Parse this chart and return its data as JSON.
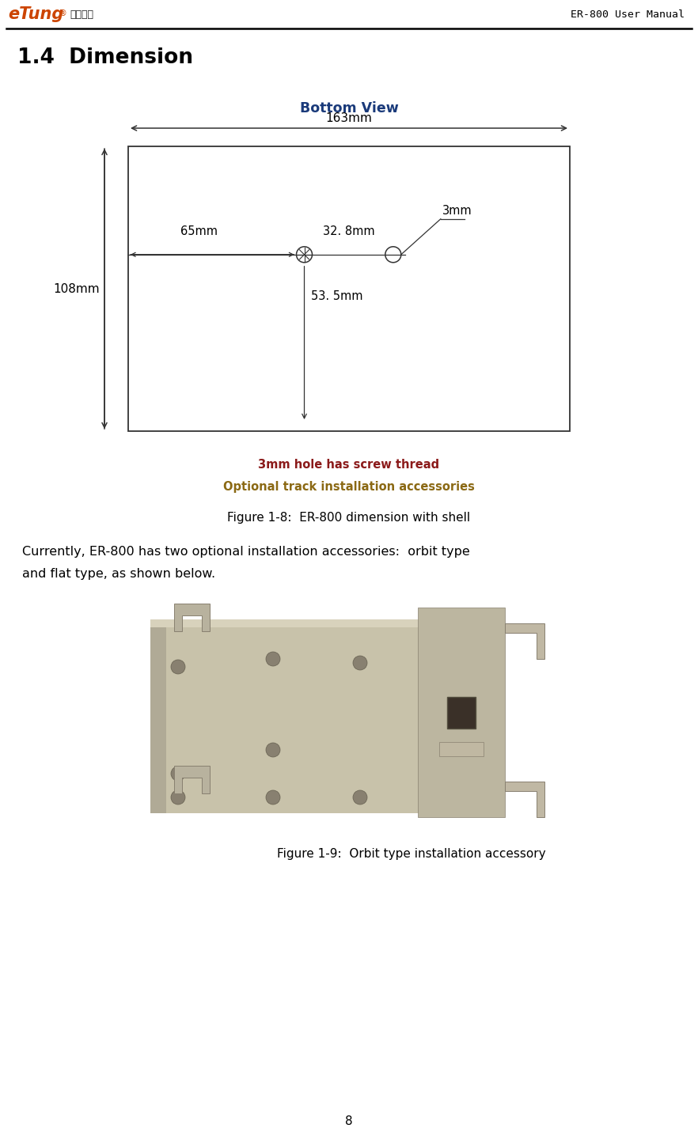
{
  "page_title": "1.4  Dimension",
  "header_right": "ER-800 User Manual",
  "bottom_view_label": "Bottom View",
  "dim_163": "163mm",
  "dim_108": "108mm",
  "dim_65": "65mm",
  "dim_32_8": "32. 8mm",
  "dim_3": "3mm",
  "dim_53_5": "53. 5mm",
  "note1": "3mm hole has screw thread",
  "note2": "Optional track installation accessories",
  "fig1_caption": "Figure 1-8:  ER-800 dimension with shell",
  "body_text1": "Currently, ER-800 has two optional installation accessories:  orbit type",
  "body_text2": "and flat type, as shown below.",
  "fig2_caption": "Figure 1-9:  Orbit type installation accessory",
  "page_number": "8",
  "bg_color": "#ffffff",
  "text_color": "#000000",
  "note1_color": "#8B1A1A",
  "note2_color": "#8B6914",
  "diagram_line_color": "#333333",
  "bottom_view_color": "#1a3a7a",
  "photo_bg": "#c8c4b0",
  "photo_dark": "#5a5040",
  "photo_med": "#a09080",
  "photo_light": "#d8d4c0"
}
